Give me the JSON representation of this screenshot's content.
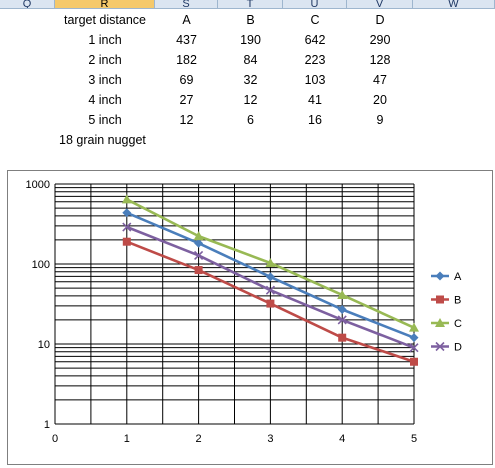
{
  "spreadsheet": {
    "column_headers": [
      "Q",
      "R",
      "S",
      "T",
      "U",
      "V",
      "W"
    ],
    "selected_column": "R",
    "rows": [
      [
        "target distance",
        "A",
        "B",
        "C",
        "D"
      ],
      [
        "1 inch",
        "437",
        "190",
        "642",
        "290"
      ],
      [
        "2 inch",
        "182",
        "84",
        "223",
        "128"
      ],
      [
        "3 inch",
        "69",
        "32",
        "103",
        "47"
      ],
      [
        "4 inch",
        "27",
        "12",
        "41",
        "20"
      ],
      [
        "5 inch",
        "12",
        "6",
        "16",
        "9"
      ],
      [
        "18 grain nugget",
        "",
        "",
        "",
        ""
      ]
    ]
  },
  "chart_data": {
    "type": "line",
    "x": [
      1,
      2,
      3,
      4,
      5
    ],
    "series": [
      {
        "name": "A",
        "values": [
          437,
          182,
          69,
          27,
          12
        ],
        "color": "#4a7ebb",
        "marker": "diamond"
      },
      {
        "name": "B",
        "values": [
          190,
          84,
          32,
          12,
          6
        ],
        "color": "#be4b48",
        "marker": "square"
      },
      {
        "name": "C",
        "values": [
          642,
          223,
          103,
          41,
          16
        ],
        "color": "#98b954",
        "marker": "triangle"
      },
      {
        "name": "D",
        "values": [
          290,
          128,
          47,
          20,
          9
        ],
        "color": "#7d60a0",
        "marker": "x"
      }
    ],
    "xlim": [
      0,
      5
    ],
    "ylim": [
      1,
      1000
    ],
    "yscale": "log",
    "x_ticks": [
      "0",
      "1",
      "2",
      "3",
      "4",
      "5"
    ],
    "y_ticks": [
      "1",
      "10",
      "100",
      "1000"
    ],
    "grid": true,
    "legend": "right",
    "title": "",
    "xlabel": "",
    "ylabel": ""
  }
}
